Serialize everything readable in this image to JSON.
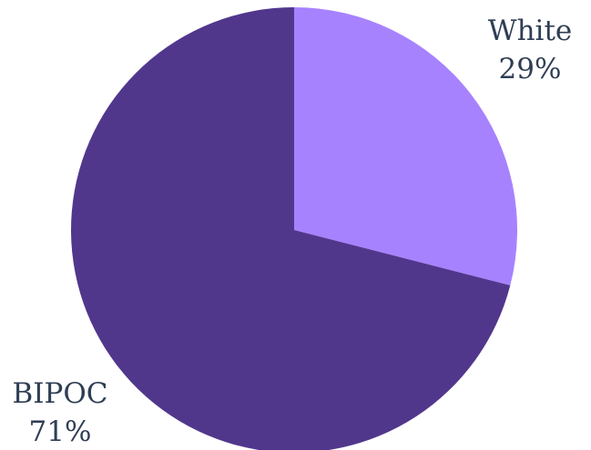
{
  "chart_data": {
    "type": "pie",
    "slices": [
      {
        "label": "White",
        "value": 29,
        "value_label": "29%",
        "color": "#a782ff"
      },
      {
        "label": "BIPOC",
        "value": 71,
        "value_label": "71%",
        "color": "#51378c"
      }
    ],
    "start_angle": "12 o'clock",
    "direction": "clockwise"
  }
}
